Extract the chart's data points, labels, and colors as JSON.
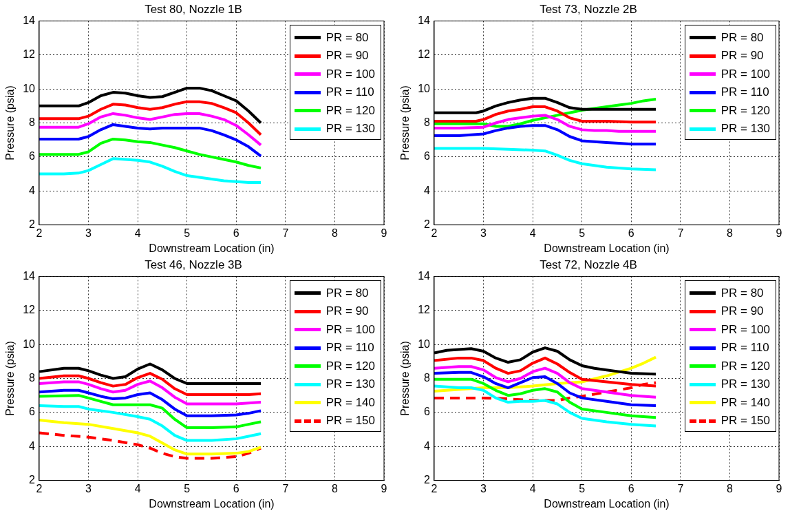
{
  "chart_data": [
    {
      "type": "line",
      "title": "Test 80, Nozzle 1B",
      "xlabel": "Downstream Location (in)",
      "ylabel": "Pressure (psia)",
      "xlim": [
        2,
        9
      ],
      "xticks": [
        2,
        3,
        4,
        5,
        6,
        7,
        8,
        9
      ],
      "ylim": [
        2,
        14
      ],
      "yticks": [
        2,
        4,
        6,
        8,
        10,
        12,
        14
      ],
      "grid": true,
      "legend": "top right",
      "marker": "none",
      "line_style": "solid",
      "series": [
        {
          "name": "PR = 80",
          "color": "#000000",
          "x": [
            2,
            2.5,
            2.8,
            3,
            3.25,
            3.5,
            3.75,
            4,
            4.25,
            4.5,
            4.75,
            5,
            5.25,
            5.5,
            5.75,
            6,
            6.25,
            6.5
          ],
          "values": [
            9,
            9,
            9,
            9.2,
            9.6,
            9.8,
            9.75,
            9.6,
            9.5,
            9.55,
            9.8,
            10.05,
            10.05,
            9.9,
            9.6,
            9.3,
            8.7,
            8.0
          ]
        },
        {
          "name": "PR = 90",
          "color": "#ff0000",
          "x": [
            2,
            2.5,
            2.8,
            3,
            3.25,
            3.5,
            3.75,
            4,
            4.25,
            4.5,
            4.75,
            5,
            5.25,
            5.5,
            5.75,
            6,
            6.25,
            6.5
          ],
          "values": [
            8.25,
            8.25,
            8.25,
            8.4,
            8.8,
            9.1,
            9.05,
            8.9,
            8.8,
            8.9,
            9.1,
            9.25,
            9.25,
            9.15,
            8.9,
            8.6,
            8.0,
            7.3
          ]
        },
        {
          "name": "PR = 100",
          "color": "#ff00ff",
          "x": [
            2,
            2.5,
            2.8,
            3,
            3.25,
            3.5,
            3.75,
            4,
            4.25,
            4.5,
            4.75,
            5,
            5.25,
            5.5,
            5.75,
            6,
            6.25,
            6.5
          ],
          "values": [
            7.75,
            7.75,
            7.75,
            7.95,
            8.35,
            8.55,
            8.45,
            8.3,
            8.2,
            8.35,
            8.5,
            8.55,
            8.55,
            8.4,
            8.2,
            7.85,
            7.3,
            6.7
          ]
        },
        {
          "name": "PR = 110",
          "color": "#0000ff",
          "x": [
            2,
            2.5,
            2.8,
            3,
            3.25,
            3.5,
            3.75,
            4,
            4.25,
            4.5,
            4.75,
            5,
            5.25,
            5.5,
            5.75,
            6,
            6.25,
            6.5
          ],
          "values": [
            7.05,
            7.05,
            7.05,
            7.2,
            7.6,
            7.9,
            7.8,
            7.7,
            7.65,
            7.7,
            7.7,
            7.7,
            7.7,
            7.55,
            7.3,
            7.0,
            6.6,
            6.05
          ]
        },
        {
          "name": "PR = 120",
          "color": "#00ff00",
          "x": [
            2,
            2.5,
            2.8,
            3,
            3.25,
            3.5,
            3.75,
            4,
            4.25,
            4.5,
            4.75,
            5,
            5.25,
            5.5,
            5.75,
            6,
            6.25,
            6.5
          ],
          "values": [
            6.15,
            6.15,
            6.15,
            6.3,
            6.8,
            7.05,
            7.0,
            6.9,
            6.85,
            6.7,
            6.55,
            6.35,
            6.15,
            6.0,
            5.85,
            5.7,
            5.5,
            5.35
          ]
        },
        {
          "name": "PR = 130",
          "color": "#00ffff",
          "x": [
            2,
            2.5,
            2.8,
            3,
            3.25,
            3.5,
            3.75,
            4,
            4.25,
            4.5,
            4.75,
            5,
            5.25,
            5.5,
            5.75,
            6,
            6.25,
            6.5
          ],
          "values": [
            5.0,
            5.0,
            5.05,
            5.2,
            5.55,
            5.9,
            5.85,
            5.8,
            5.7,
            5.45,
            5.15,
            4.9,
            4.8,
            4.7,
            4.6,
            4.55,
            4.5,
            4.5
          ]
        }
      ]
    },
    {
      "type": "line",
      "title": "Test 73, Nozzle 2B",
      "xlabel": "Downstream Location (in)",
      "ylabel": "Pressure (psia)",
      "xlim": [
        2,
        9
      ],
      "xticks": [
        2,
        3,
        4,
        5,
        6,
        7,
        8,
        9
      ],
      "ylim": [
        2,
        14
      ],
      "yticks": [
        2,
        4,
        6,
        8,
        10,
        12,
        14
      ],
      "grid": true,
      "legend": "top right",
      "marker": "none",
      "line_style": "solid",
      "series": [
        {
          "name": "PR = 80",
          "color": "#000000",
          "x": [
            2,
            2.5,
            2.85,
            3,
            3.25,
            3.5,
            3.75,
            4,
            4.25,
            4.5,
            4.75,
            5,
            5.5,
            6,
            6.5
          ],
          "values": [
            8.6,
            8.6,
            8.6,
            8.7,
            9.0,
            9.2,
            9.35,
            9.45,
            9.45,
            9.2,
            8.9,
            8.8,
            8.8,
            8.8,
            8.8
          ]
        },
        {
          "name": "PR = 90",
          "color": "#ff0000",
          "x": [
            2,
            2.5,
            2.85,
            3,
            3.25,
            3.5,
            3.75,
            4,
            4.25,
            4.5,
            4.75,
            5,
            5.5,
            6,
            6.5
          ],
          "values": [
            8.1,
            8.1,
            8.1,
            8.2,
            8.5,
            8.7,
            8.8,
            8.95,
            8.95,
            8.7,
            8.3,
            8.1,
            8.1,
            8.05,
            8.05
          ]
        },
        {
          "name": "PR = 100",
          "color": "#ff00ff",
          "x": [
            2,
            2.5,
            3,
            3.25,
            3.5,
            3.75,
            4,
            4.25,
            4.5,
            4.75,
            5,
            5.25,
            5.5,
            5.75,
            6,
            6.5
          ],
          "values": [
            7.7,
            7.7,
            7.75,
            8.0,
            8.2,
            8.3,
            8.4,
            8.45,
            8.2,
            7.8,
            7.6,
            7.55,
            7.55,
            7.5,
            7.5,
            7.5
          ]
        },
        {
          "name": "PR = 110",
          "color": "#0000ff",
          "x": [
            2,
            2.5,
            3,
            3.25,
            3.5,
            3.75,
            4,
            4.25,
            4.5,
            4.75,
            5,
            5.25,
            5.5,
            5.75,
            6,
            6.5
          ],
          "values": [
            7.25,
            7.25,
            7.35,
            7.55,
            7.7,
            7.8,
            7.85,
            7.85,
            7.6,
            7.2,
            6.95,
            6.9,
            6.85,
            6.8,
            6.75,
            6.75
          ]
        },
        {
          "name": "PR = 120",
          "color": "#00ff00",
          "x": [
            2,
            2.5,
            3,
            3.25,
            3.5,
            3.75,
            4,
            4.25,
            4.5,
            4.75,
            5,
            5.25,
            5.5,
            5.75,
            6,
            6.25,
            6.5
          ],
          "values": [
            7.95,
            7.95,
            7.95,
            7.8,
            7.8,
            7.95,
            8.15,
            8.3,
            8.45,
            8.6,
            8.75,
            8.85,
            8.95,
            9.05,
            9.15,
            9.3,
            9.4
          ]
        },
        {
          "name": "PR = 130",
          "color": "#00ffff",
          "x": [
            2,
            2.5,
            3,
            3.5,
            4,
            4.25,
            4.5,
            4.75,
            5,
            5.25,
            5.5,
            5.75,
            6,
            6.5
          ],
          "values": [
            6.5,
            6.5,
            6.5,
            6.45,
            6.4,
            6.35,
            6.1,
            5.8,
            5.6,
            5.5,
            5.4,
            5.35,
            5.3,
            5.25
          ]
        }
      ]
    },
    {
      "type": "line",
      "title": "Test 46, Nozzle 3B",
      "xlabel": "Downstream Location (in)",
      "ylabel": "Pressure (psia)",
      "xlim": [
        2,
        9
      ],
      "xticks": [
        2,
        3,
        4,
        5,
        6,
        7,
        8,
        9
      ],
      "ylim": [
        2,
        14
      ],
      "yticks": [
        2,
        4,
        6,
        8,
        10,
        12,
        14
      ],
      "grid": true,
      "legend": "top right",
      "marker": "none",
      "line_style": "solid",
      "series": [
        {
          "name": "PR = 80",
          "color": "#000000",
          "x": [
            2,
            2.5,
            2.8,
            3,
            3.25,
            3.5,
            3.75,
            4,
            4.25,
            4.5,
            4.75,
            5,
            5.5,
            6,
            6.5
          ],
          "values": [
            8.4,
            8.6,
            8.6,
            8.45,
            8.2,
            8.0,
            8.1,
            8.55,
            8.85,
            8.5,
            8.0,
            7.7,
            7.7,
            7.7,
            7.7
          ]
        },
        {
          "name": "PR = 90",
          "color": "#ff0000",
          "x": [
            2,
            2.5,
            2.8,
            3,
            3.25,
            3.5,
            3.75,
            4,
            4.25,
            4.5,
            4.75,
            5,
            5.5,
            6,
            6.25,
            6.5
          ],
          "values": [
            8.0,
            8.15,
            8.15,
            8.0,
            7.75,
            7.55,
            7.65,
            8.05,
            8.3,
            7.95,
            7.4,
            7.05,
            7.05,
            7.05,
            7.05,
            7.1
          ]
        },
        {
          "name": "PR = 100",
          "color": "#ff00ff",
          "x": [
            2,
            2.5,
            2.8,
            3,
            3.25,
            3.5,
            3.75,
            4,
            4.25,
            4.5,
            4.75,
            5,
            5.5,
            6,
            6.25,
            6.5
          ],
          "values": [
            7.7,
            7.8,
            7.8,
            7.65,
            7.4,
            7.2,
            7.3,
            7.65,
            7.85,
            7.45,
            6.9,
            6.5,
            6.5,
            6.5,
            6.55,
            6.6
          ]
        },
        {
          "name": "PR = 110",
          "color": "#0000ff",
          "x": [
            2,
            2.5,
            2.8,
            3,
            3.25,
            3.5,
            3.75,
            4,
            4.25,
            4.5,
            4.75,
            5,
            5.5,
            6,
            6.25,
            6.5
          ],
          "values": [
            7.2,
            7.3,
            7.3,
            7.15,
            6.95,
            6.8,
            6.85,
            7.05,
            7.15,
            6.75,
            6.2,
            5.8,
            5.8,
            5.85,
            5.95,
            6.1
          ]
        },
        {
          "name": "PR = 120",
          "color": "#00ff00",
          "x": [
            2,
            2.8,
            3,
            3.25,
            3.5,
            4,
            4.25,
            4.5,
            4.75,
            5,
            5.5,
            6,
            6.25,
            6.5
          ],
          "values": [
            6.95,
            7.0,
            6.85,
            6.65,
            6.45,
            6.45,
            6.45,
            6.25,
            5.6,
            5.1,
            5.1,
            5.15,
            5.3,
            5.45
          ]
        },
        {
          "name": "PR = 130",
          "color": "#00ffff",
          "x": [
            2,
            2.5,
            2.8,
            3,
            3.5,
            4,
            4.25,
            4.5,
            4.75,
            5,
            5.5,
            6,
            6.25,
            6.5
          ],
          "values": [
            6.4,
            6.35,
            6.35,
            6.2,
            6.0,
            5.75,
            5.6,
            5.2,
            4.65,
            4.35,
            4.35,
            4.45,
            4.6,
            4.75
          ]
        },
        {
          "name": "PR = 140",
          "color": "#ffff00",
          "x": [
            2,
            2.5,
            3,
            3.5,
            4,
            4.25,
            4.5,
            4.75,
            5,
            5.5,
            6,
            6.25,
            6.5
          ],
          "values": [
            5.55,
            5.4,
            5.3,
            5.05,
            4.8,
            4.6,
            4.2,
            3.8,
            3.55,
            3.55,
            3.6,
            3.7,
            3.95
          ]
        },
        {
          "name": "PR = 150",
          "color": "#ff0000",
          "line_style": "dashed",
          "x": [
            2,
            2.5,
            3,
            3.5,
            4,
            4.25,
            4.5,
            4.75,
            5,
            5.5,
            6,
            6.25,
            6.5
          ],
          "values": [
            4.8,
            4.65,
            4.55,
            4.35,
            4.1,
            3.9,
            3.6,
            3.4,
            3.3,
            3.3,
            3.4,
            3.6,
            3.9
          ]
        }
      ]
    },
    {
      "type": "line",
      "title": "Test 72, Nozzle 4B",
      "xlabel": "Downstream Location (in)",
      "ylabel": "Pressure (psia)",
      "xlim": [
        2,
        9
      ],
      "xticks": [
        2,
        3,
        4,
        5,
        6,
        7,
        8,
        9
      ],
      "ylim": [
        2,
        14
      ],
      "yticks": [
        2,
        4,
        6,
        8,
        10,
        12,
        14
      ],
      "grid": true,
      "legend": "top right",
      "marker": "none",
      "line_style": "solid",
      "series": [
        {
          "name": "PR = 80",
          "color": "#000000",
          "x": [
            2,
            2.25,
            2.5,
            2.75,
            3,
            3.25,
            3.5,
            3.75,
            4,
            4.25,
            4.5,
            4.75,
            5,
            5.25,
            5.5,
            5.75,
            6,
            6.5
          ],
          "values": [
            9.5,
            9.65,
            9.7,
            9.75,
            9.6,
            9.2,
            8.95,
            9.1,
            9.55,
            9.8,
            9.6,
            9.1,
            8.75,
            8.6,
            8.5,
            8.4,
            8.3,
            8.25
          ]
        },
        {
          "name": "PR = 90",
          "color": "#ff0000",
          "x": [
            2,
            2.5,
            2.75,
            3,
            3.25,
            3.5,
            3.75,
            4,
            4.25,
            4.5,
            4.75,
            5,
            5.5,
            6,
            6.5
          ],
          "values": [
            9.05,
            9.2,
            9.2,
            9.05,
            8.6,
            8.3,
            8.45,
            8.9,
            9.2,
            8.85,
            8.35,
            7.95,
            7.8,
            7.65,
            7.55
          ]
        },
        {
          "name": "PR = 100",
          "color": "#ff00ff",
          "x": [
            2,
            2.5,
            2.75,
            3,
            3.25,
            3.5,
            3.75,
            4,
            4.25,
            4.5,
            4.75,
            5,
            5.5,
            6,
            6.5
          ],
          "values": [
            8.6,
            8.7,
            8.7,
            8.5,
            8.05,
            7.8,
            8.0,
            8.4,
            8.6,
            8.3,
            7.75,
            7.4,
            7.2,
            7.0,
            6.9
          ]
        },
        {
          "name": "PR = 110",
          "color": "#0000ff",
          "x": [
            2,
            2.5,
            2.75,
            3,
            3.25,
            3.5,
            3.75,
            4,
            4.25,
            4.5,
            4.75,
            5,
            5.5,
            6,
            6.5
          ],
          "values": [
            8.3,
            8.35,
            8.35,
            8.1,
            7.7,
            7.45,
            7.75,
            8.05,
            8.1,
            7.7,
            7.15,
            6.85,
            6.65,
            6.45,
            6.4
          ]
        },
        {
          "name": "PR = 120",
          "color": "#00ff00",
          "x": [
            2,
            2.5,
            2.75,
            3,
            3.25,
            3.5,
            3.75,
            4,
            4.25,
            4.5,
            4.75,
            5,
            5.5,
            6,
            6.5
          ],
          "values": [
            7.95,
            7.95,
            7.95,
            7.7,
            7.3,
            7.0,
            7.1,
            7.3,
            7.4,
            7.2,
            6.6,
            6.2,
            6.0,
            5.8,
            5.7
          ]
        },
        {
          "name": "PR = 130",
          "color": "#00ffff",
          "x": [
            2,
            2.5,
            2.75,
            3,
            3.25,
            3.5,
            3.75,
            4,
            4.25,
            4.5,
            4.75,
            5,
            5.5,
            6,
            6.5
          ],
          "values": [
            7.55,
            7.45,
            7.45,
            7.3,
            6.85,
            6.6,
            6.65,
            6.65,
            6.7,
            6.5,
            6.0,
            5.65,
            5.45,
            5.3,
            5.2
          ]
        },
        {
          "name": "PR = 140",
          "color": "#ffff00",
          "x": [
            2,
            2.5,
            3,
            3.5,
            4,
            4.5,
            5,
            5.5,
            6,
            6.25,
            6.5
          ],
          "values": [
            7.25,
            7.35,
            7.45,
            7.45,
            7.55,
            7.7,
            7.8,
            8.15,
            8.6,
            8.9,
            9.25
          ]
        },
        {
          "name": "PR = 150",
          "color": "#ff0000",
          "line_style": "dashed",
          "x": [
            2,
            2.5,
            3,
            3.5,
            4,
            4.5,
            4.75,
            5,
            5.5,
            6,
            6.25,
            6.5
          ],
          "values": [
            6.85,
            6.85,
            6.85,
            6.8,
            6.7,
            6.7,
            6.85,
            6.95,
            7.2,
            7.45,
            7.65,
            7.75
          ]
        }
      ]
    }
  ]
}
